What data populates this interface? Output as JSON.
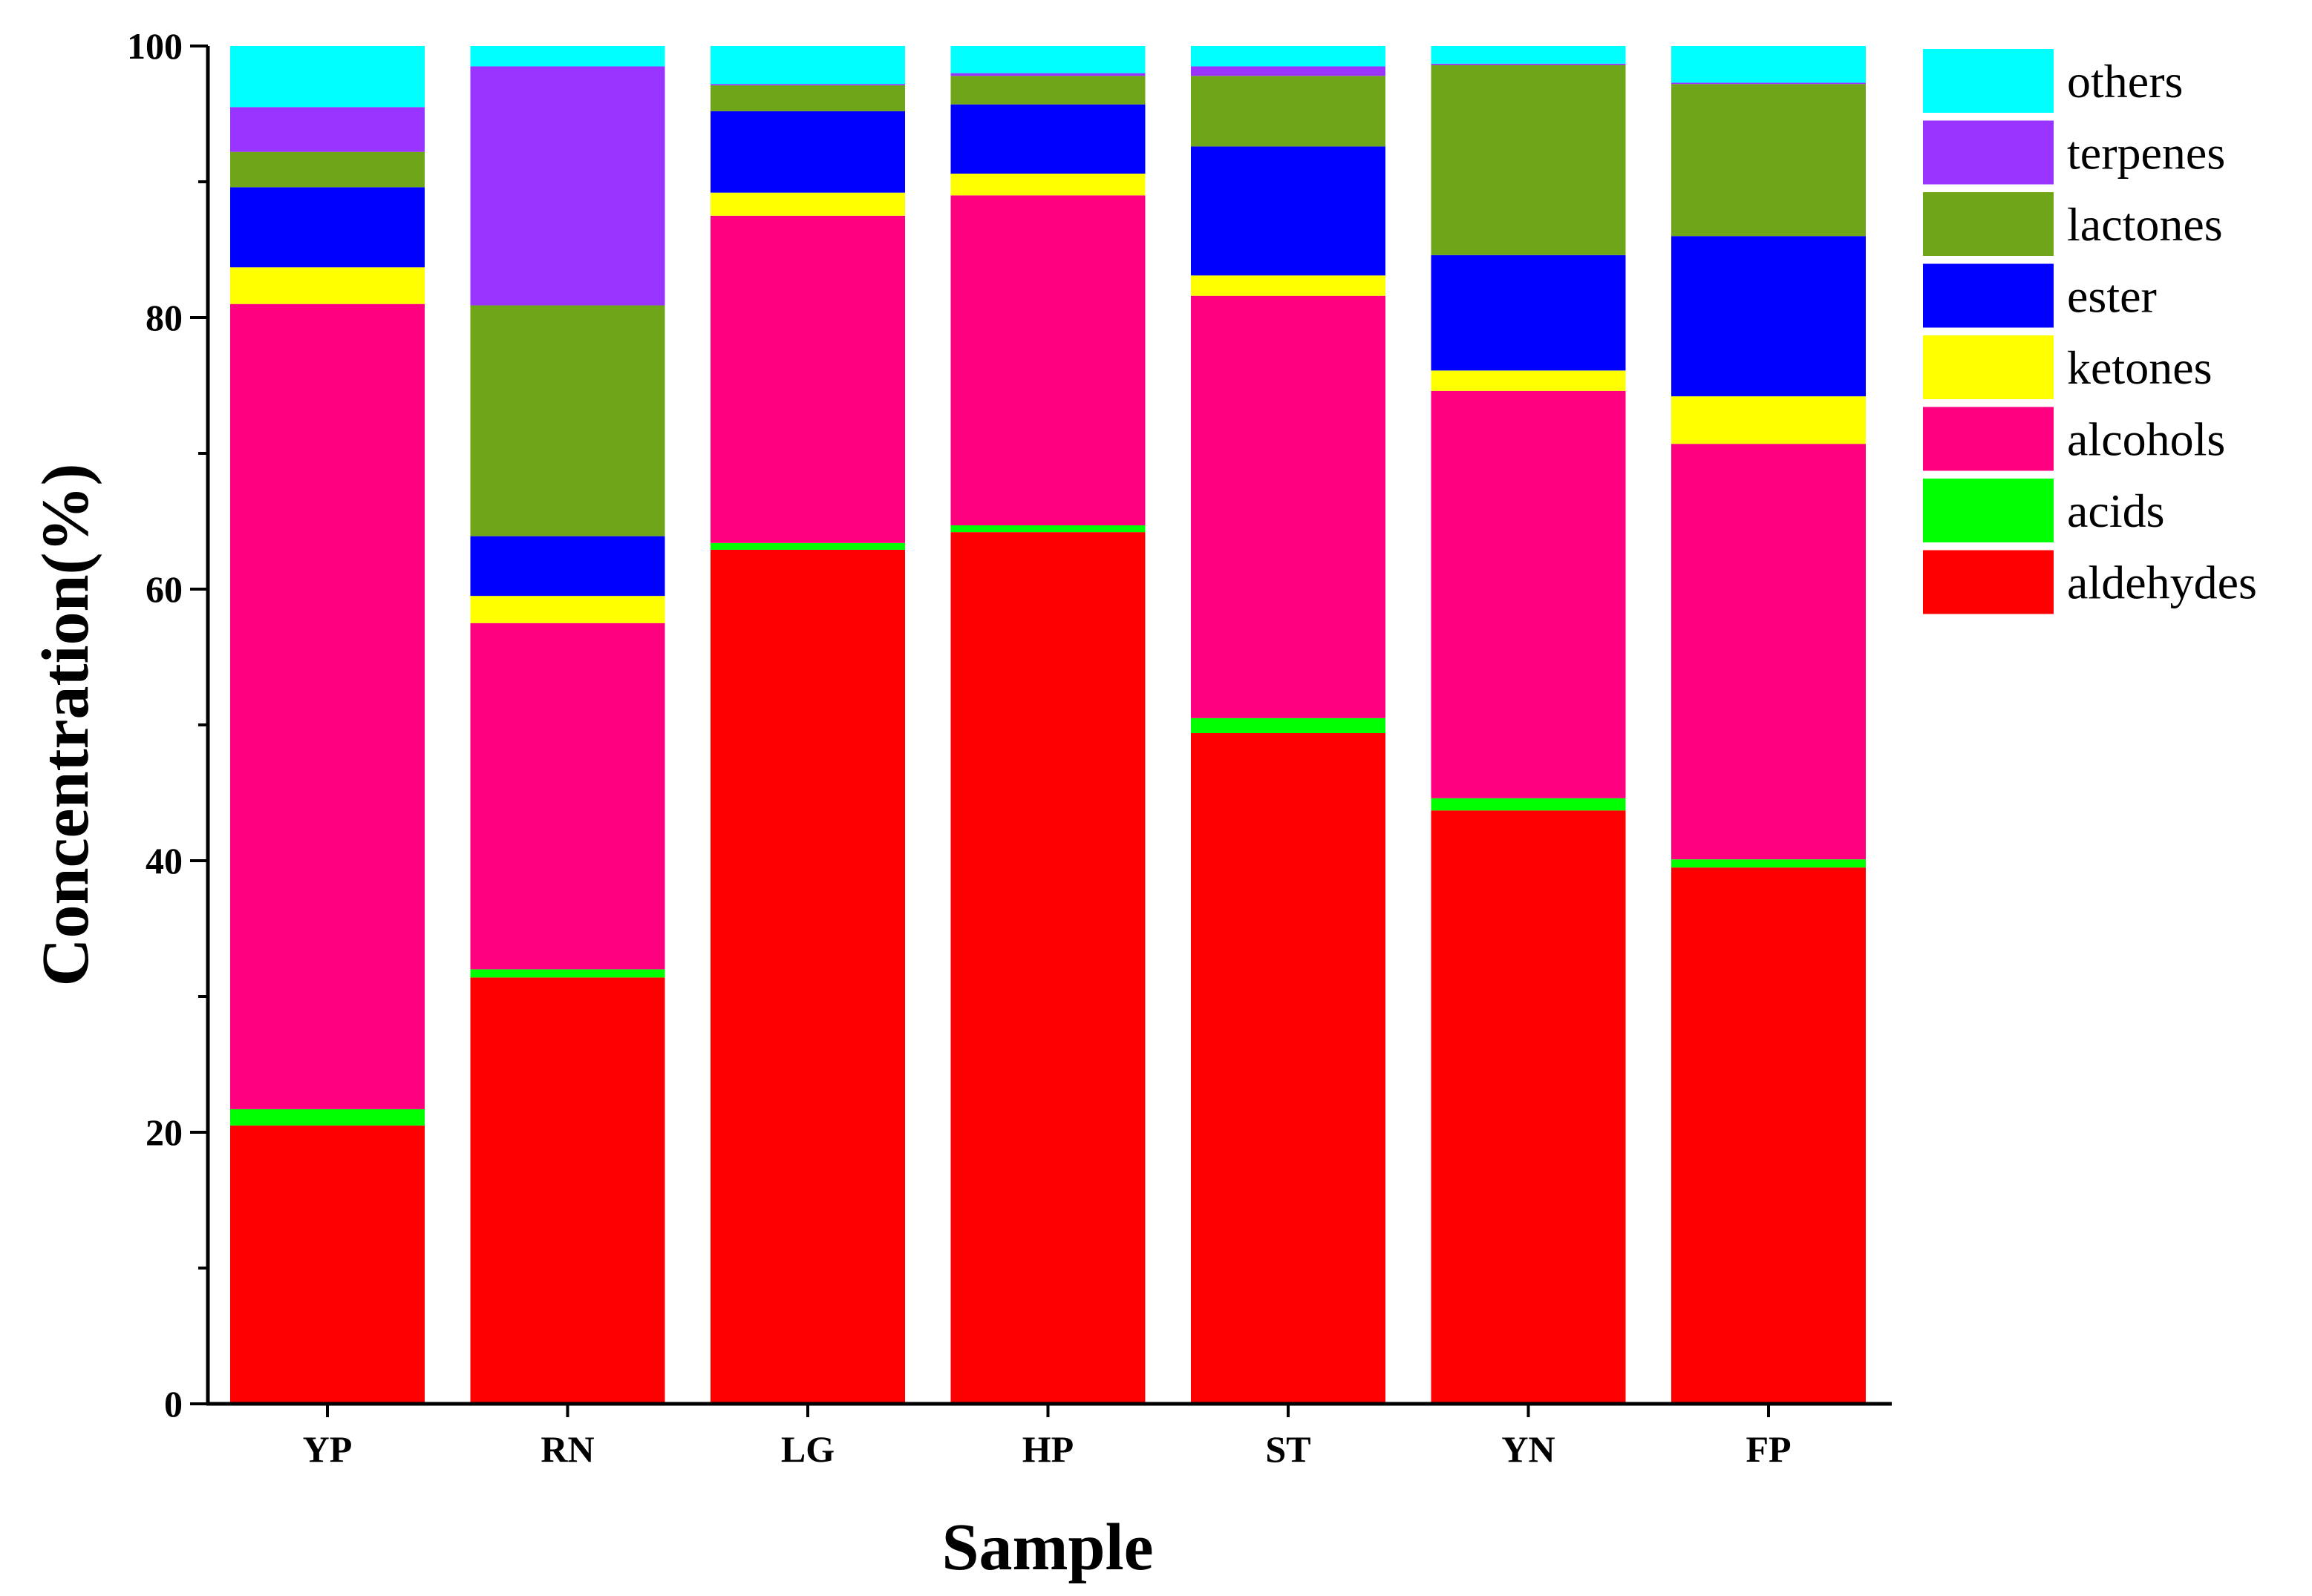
{
  "chart_data": {
    "type": "bar",
    "stacked": true,
    "title": "",
    "xlabel": "Sample",
    "ylabel": "Concentration(%)",
    "ylim": [
      0,
      100
    ],
    "yticks": [
      0,
      20,
      40,
      60,
      80,
      100
    ],
    "categories": [
      "YP",
      "RN",
      "LG",
      "HP",
      "ST",
      "YN",
      "FP"
    ],
    "series": [
      {
        "name": "aldehydes",
        "color": "#ff0000",
        "values": [
          20.5,
          31.4,
          62.9,
          64.2,
          49.4,
          43.7,
          39.5
        ]
      },
      {
        "name": "acids",
        "color": "#00ff00",
        "values": [
          1.2,
          0.6,
          0.5,
          0.5,
          1.1,
          0.9,
          0.6
        ]
      },
      {
        "name": "alcohols",
        "color": "#ff0080",
        "values": [
          59.3,
          25.5,
          24.1,
          24.3,
          31.1,
          30.0,
          30.6
        ]
      },
      {
        "name": "ketones",
        "color": "#ffff00",
        "values": [
          2.7,
          2.0,
          1.7,
          1.6,
          1.5,
          1.5,
          3.5
        ]
      },
      {
        "name": "ester",
        "color": "#0000ff",
        "values": [
          5.9,
          4.4,
          6.0,
          5.1,
          9.5,
          8.5,
          11.8
        ]
      },
      {
        "name": "lactones",
        "color": "#6fa518",
        "values": [
          2.6,
          17.0,
          1.9,
          2.1,
          5.2,
          14.0,
          11.2
        ]
      },
      {
        "name": "terpenes",
        "color": "#9933ff",
        "values": [
          3.3,
          17.6,
          0.1,
          0.2,
          0.7,
          0.1,
          0.1
        ]
      },
      {
        "name": "others",
        "color": "#00ffff",
        "values": [
          4.5,
          1.5,
          2.8,
          2.0,
          1.5,
          1.3,
          2.7
        ]
      }
    ],
    "legend_order": [
      "others",
      "terpenes",
      "lactones",
      "ester",
      "ketones",
      "alcohols",
      "acids",
      "aldehydes"
    ],
    "legend_position": "right",
    "grid": false
  }
}
